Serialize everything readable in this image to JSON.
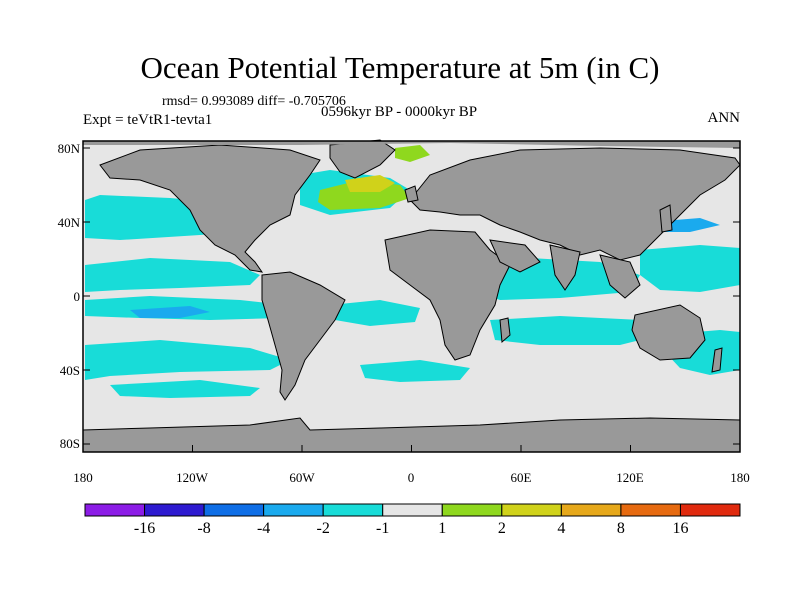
{
  "title": "Ocean Potential Temperature at 5m (in C)",
  "stats": "rmsd= 0.993089 diff= -0.705706",
  "experiment": "Expt = teVtR1-tevta1",
  "period": "0596kyr BP - 0000kyr BP",
  "season": "ANN",
  "lat_labels": [
    "80N",
    "40N",
    "0",
    "40S",
    "80S"
  ],
  "lon_labels": [
    "180",
    "120W",
    "60W",
    "0",
    "60E",
    "120E",
    "180"
  ],
  "colorbar": {
    "colors": [
      "#8c1ce6",
      "#2e1ad0",
      "#0f6ee6",
      "#1aaaee",
      "#18dcd8",
      "#e6e6e6",
      "#8fd81e",
      "#d0d21a",
      "#e6a81a",
      "#e66a10",
      "#e02a0e"
    ],
    "labels": [
      "-16",
      "-8",
      "-4",
      "-2",
      "-1",
      "1",
      "2",
      "4",
      "8",
      "16"
    ]
  },
  "colors": {
    "land": "#999999",
    "ocean_neutral": "#e6e6e6",
    "cool": "#18dcd8",
    "cooler": "#1aaaee",
    "warm": "#8fd81e",
    "warmer": "#d0d21a"
  }
}
